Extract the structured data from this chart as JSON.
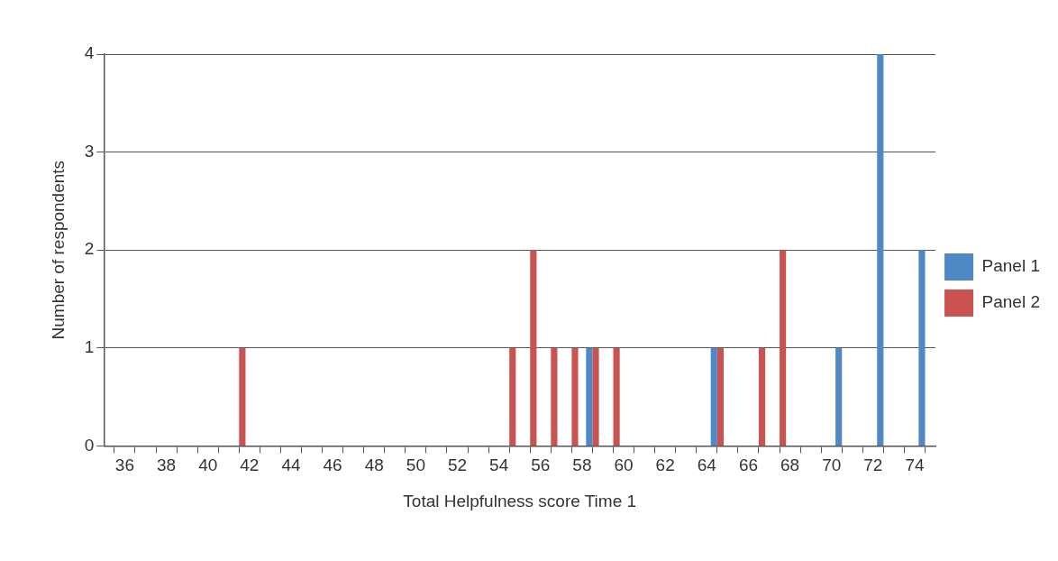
{
  "chart_data": {
    "type": "bar",
    "xlabel": "Total Helpfulness score Time 1",
    "ylabel": "Number of respondents",
    "xlim": [
      35,
      75
    ],
    "xticks": [
      36,
      38,
      40,
      42,
      44,
      46,
      48,
      50,
      52,
      54,
      56,
      58,
      60,
      62,
      64,
      66,
      68,
      70,
      72,
      74
    ],
    "ylim": [
      0,
      4
    ],
    "yticks": [
      0,
      1,
      2,
      3,
      4
    ],
    "grid": "y",
    "legend": "right",
    "series": [
      {
        "name": "Panel 1",
        "color": "#5088c6",
        "x": [
          58.5,
          64.5,
          70.5,
          72.5,
          74.5
        ],
        "values": [
          1,
          1,
          1,
          4,
          2
        ]
      },
      {
        "name": "Panel 2",
        "color": "#c85351",
        "x": [
          41.5,
          54.5,
          55.5,
          56.5,
          57.5,
          58.5,
          59.5,
          64.5,
          66.5,
          67.5
        ],
        "values": [
          1,
          1,
          2,
          1,
          1,
          1,
          1,
          1,
          1,
          2
        ]
      }
    ]
  }
}
